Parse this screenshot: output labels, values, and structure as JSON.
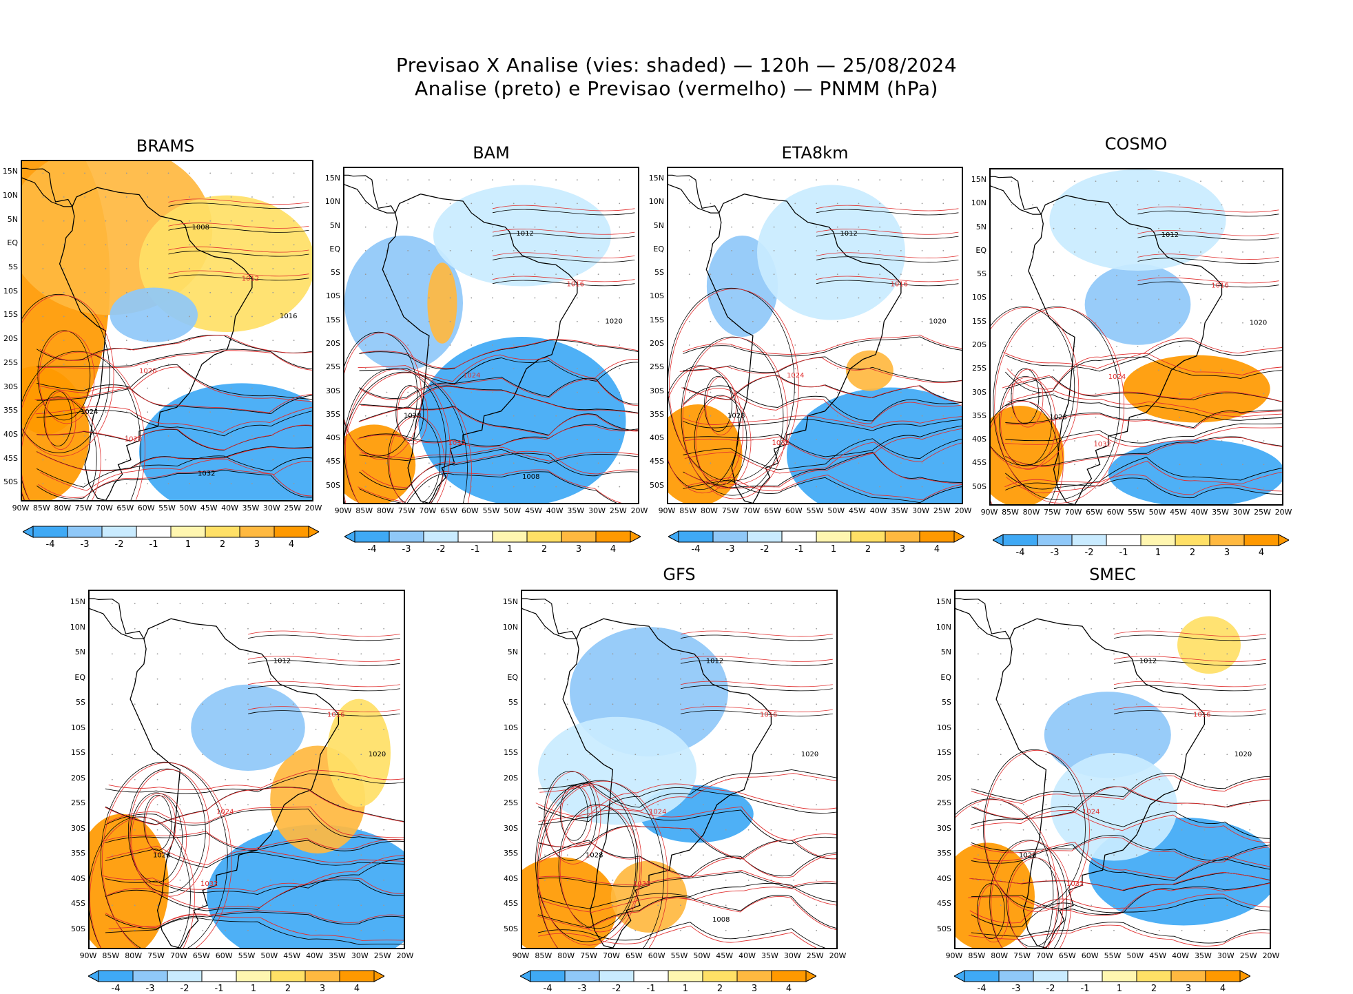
{
  "title": {
    "line1": "Previsao X Analise (vies: shaded) — 120h — 25/08/2024",
    "line2": "Analise (preto) e Previsao (vermelho) — PNMM (hPa)"
  },
  "colors": {
    "neg4": "#3fa9f5",
    "neg3": "#8fc8f8",
    "neg2": "#c9ebff",
    "neg1": "#ffffff",
    "pos1": "#fff6b0",
    "pos2": "#ffe066",
    "pos3": "#ffb940",
    "pos4": "#ff9900",
    "analysis_line": "#000000",
    "forecast_line": "#e03030",
    "grid": "#999999"
  },
  "axes": {
    "lat_labels": [
      "15N",
      "10N",
      "5N",
      "EQ",
      "5S",
      "10S",
      "15S",
      "20S",
      "25S",
      "30S",
      "35S",
      "40S",
      "45S",
      "50S"
    ],
    "lon_labels": [
      "90W",
      "85W",
      "80W",
      "75W",
      "70W",
      "65W",
      "60W",
      "55W",
      "50W",
      "45W",
      "40W",
      "35W",
      "30W",
      "25W",
      "20W"
    ]
  },
  "colorbar": {
    "labels": [
      "-4",
      "-3",
      "-2",
      "-1",
      "1",
      "2",
      "3",
      "4"
    ]
  },
  "panels": [
    {
      "name": "BRAMS",
      "isobar_labels": [
        "1008",
        "1012",
        "1016",
        "1020",
        "1024",
        "1028",
        "1032"
      ]
    },
    {
      "name": "BAM",
      "isobar_labels": [
        "1012",
        "1016",
        "1020",
        "1024",
        "1028",
        "1032",
        "1008"
      ]
    },
    {
      "name": "ETA8km",
      "isobar_labels": [
        "1012",
        "1016",
        "1020",
        "1024",
        "1028",
        "1032"
      ]
    },
    {
      "name": "COSMO",
      "isobar_labels": [
        "1012",
        "1016",
        "1020",
        "1024",
        "1028",
        "1032"
      ]
    },
    {
      "name": "",
      "isobar_labels": [
        "1012",
        "1016",
        "1020",
        "1024",
        "1028",
        "1032"
      ]
    },
    {
      "name": "GFS",
      "isobar_labels": [
        "1012",
        "1016",
        "1020",
        "1024",
        "1028",
        "1032",
        "1008"
      ]
    },
    {
      "name": "SMEC",
      "isobar_labels": [
        "1012",
        "1016",
        "1020",
        "1024",
        "1028",
        "1032"
      ]
    }
  ]
}
